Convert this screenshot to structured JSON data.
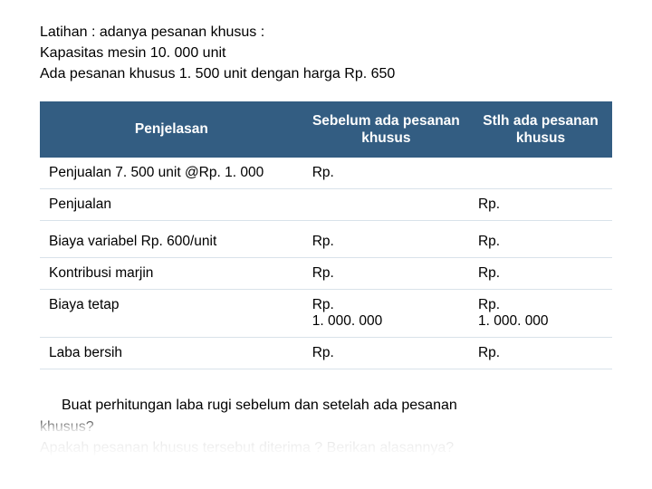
{
  "intro": {
    "line1": "Latihan : adanya pesanan khusus :",
    "line2": "Kapasitas mesin 10. 000 unit",
    "line3": "Ada pesanan khusus 1. 500 unit dengan harga Rp. 650"
  },
  "table": {
    "headers": {
      "col1": "Penjelasan",
      "col2": "Sebelum ada pesanan khusus",
      "col3": "Stlh ada pesanan khusus"
    },
    "rows": [
      {
        "c1": "Penjualan 7. 500 unit @Rp. 1. 000",
        "c2": "Rp.",
        "c3": ""
      },
      {
        "c1": "Penjualan",
        "c2": "",
        "c3": "Rp."
      },
      {
        "c1": "Biaya variabel Rp. 600/unit",
        "c2": "Rp.",
        "c3": "Rp."
      },
      {
        "c1": "Kontribusi marjin",
        "c2": "Rp.",
        "c3": "Rp."
      },
      {
        "c1": "Biaya tetap",
        "c2": "Rp.\n1. 000. 000",
        "c3": "Rp.\n1. 000. 000"
      },
      {
        "c1": "Laba bersih",
        "c2": "Rp.",
        "c3": "Rp."
      }
    ]
  },
  "questions": {
    "q1a": "Buat perhitungan laba rugi sebelum dan setelah ada pesanan",
    "q1b": "khusus?",
    "q2": "Apakah pesanan khusus tersebut diterima ? Berikan alasannya?"
  },
  "colors": {
    "header_bg": "#335d82",
    "header_text": "#ffffff",
    "row_border": "#d9e2ea",
    "page_bg": "#ffffff",
    "text": "#000000"
  }
}
